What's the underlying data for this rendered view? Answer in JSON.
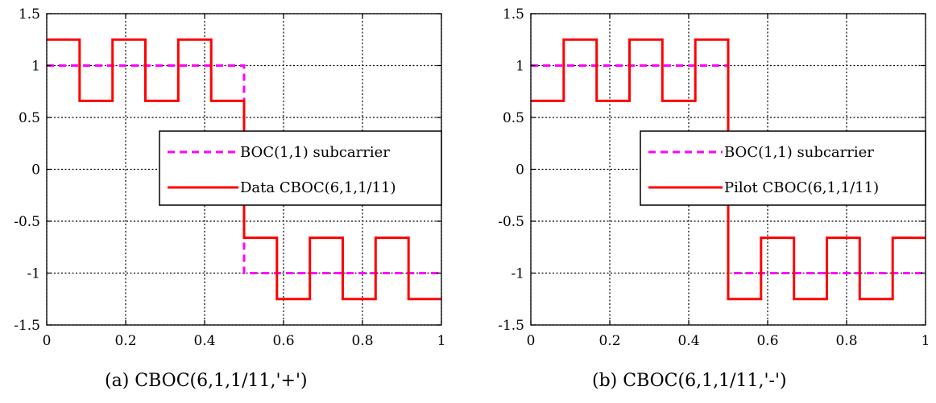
{
  "chart_data": [
    {
      "type": "line",
      "caption": "(a) CBOC(6,1,1/11,'+')",
      "xlim": [
        0,
        1
      ],
      "ylim": [
        -1.5,
        1.5
      ],
      "xticks": [
        "0",
        "0.2",
        "0.4",
        "0.6",
        "0.8",
        "1"
      ],
      "yticks": [
        "1.5",
        "1",
        "0.5",
        "0",
        "-0.5",
        "-1",
        "-1.5"
      ],
      "grid": true,
      "legend_position": "right",
      "series": [
        {
          "name": "BOC(1,1) subcarrier",
          "color": "#ff00ff",
          "style": "dashed",
          "x": [
            0,
            0.5,
            0.5,
            1
          ],
          "y": [
            1,
            1,
            -1,
            -1
          ]
        },
        {
          "name": "Data CBOC(6,1,1/11)",
          "color": "#ff0000",
          "style": "solid",
          "x": [
            0,
            0.0833,
            0.0833,
            0.1667,
            0.1667,
            0.25,
            0.25,
            0.3333,
            0.3333,
            0.4167,
            0.4167,
            0.5,
            0.5,
            0.5833,
            0.5833,
            0.6667,
            0.6667,
            0.75,
            0.75,
            0.8333,
            0.8333,
            0.9167,
            0.9167,
            1
          ],
          "y": [
            1.25,
            1.25,
            0.66,
            0.66,
            1.25,
            1.25,
            0.66,
            0.66,
            1.25,
            1.25,
            0.66,
            0.66,
            -0.66,
            -0.66,
            -1.25,
            -1.25,
            -0.66,
            -0.66,
            -1.25,
            -1.25,
            -0.66,
            -0.66,
            -1.25,
            -1.25
          ]
        }
      ]
    },
    {
      "type": "line",
      "caption": "(b) CBOC(6,1,1/11,'-')",
      "xlim": [
        0,
        1
      ],
      "ylim": [
        -1.5,
        1.5
      ],
      "xticks": [
        "0",
        "0.2",
        "0.4",
        "0.6",
        "0.8",
        "1"
      ],
      "yticks": [
        "1.5",
        "1",
        "0.5",
        "0",
        "-0.5",
        "-1",
        "-1.5"
      ],
      "grid": true,
      "legend_position": "right",
      "series": [
        {
          "name": "BOC(1,1) subcarrier",
          "color": "#ff00ff",
          "style": "dashed",
          "x": [
            0,
            0.5,
            0.5,
            1
          ],
          "y": [
            1,
            1,
            -1,
            -1
          ]
        },
        {
          "name": "Pilot CBOC(6,1,1/11)",
          "color": "#ff0000",
          "style": "solid",
          "x": [
            0,
            0.0833,
            0.0833,
            0.1667,
            0.1667,
            0.25,
            0.25,
            0.3333,
            0.3333,
            0.4167,
            0.4167,
            0.5,
            0.5,
            0.5833,
            0.5833,
            0.6667,
            0.6667,
            0.75,
            0.75,
            0.8333,
            0.8333,
            0.9167,
            0.9167,
            1
          ],
          "y": [
            0.66,
            0.66,
            1.25,
            1.25,
            0.66,
            0.66,
            1.25,
            1.25,
            0.66,
            0.66,
            1.25,
            1.25,
            -1.25,
            -1.25,
            -0.66,
            -0.66,
            -1.25,
            -1.25,
            -0.66,
            -0.66,
            -1.25,
            -1.25,
            -0.66,
            -0.66
          ]
        }
      ]
    }
  ]
}
